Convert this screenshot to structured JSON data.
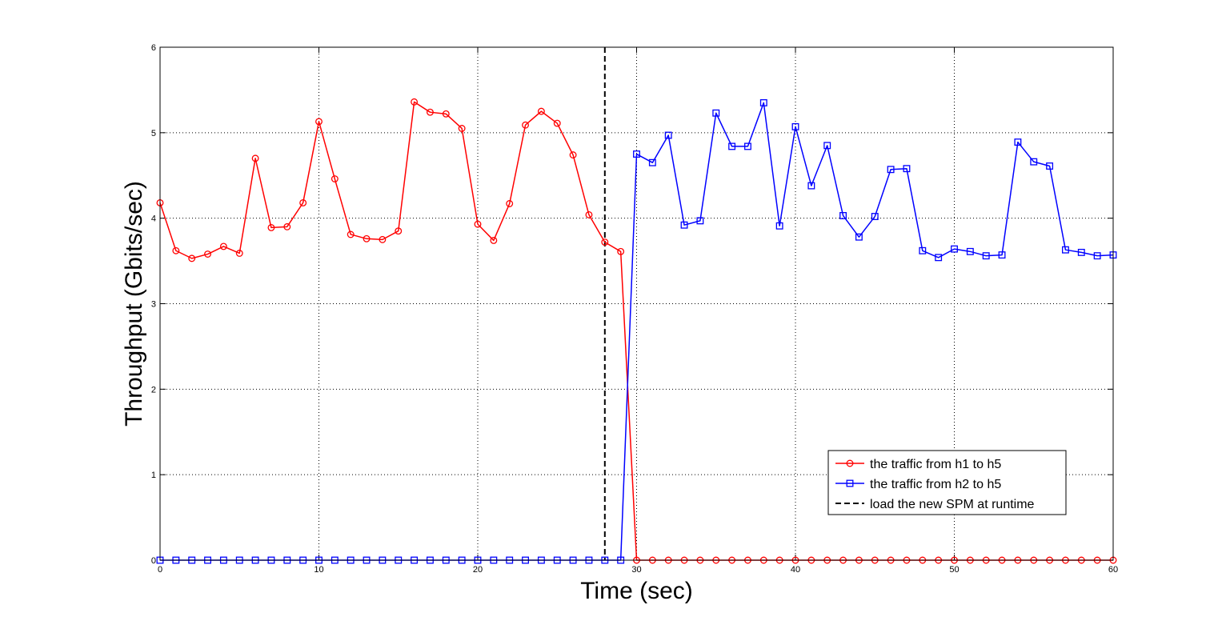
{
  "chart_data": {
    "type": "line",
    "title": "",
    "xlabel": "Time (sec)",
    "ylabel": "Throughput (Gbits/sec)",
    "xlim": [
      0,
      60
    ],
    "ylim": [
      0,
      6
    ],
    "xticks": [
      "0",
      "10",
      "20",
      "30",
      "40",
      "50",
      "60"
    ],
    "yticks": [
      "0",
      "1",
      "2",
      "3",
      "4",
      "5",
      "6"
    ],
    "grid": true,
    "legend_position": "lower-right",
    "x": [
      0,
      1,
      2,
      3,
      4,
      5,
      6,
      7,
      8,
      9,
      10,
      11,
      12,
      13,
      14,
      15,
      16,
      17,
      18,
      19,
      20,
      21,
      22,
      23,
      24,
      25,
      26,
      27,
      28,
      29,
      30,
      31,
      32,
      33,
      34,
      35,
      36,
      37,
      38,
      39,
      40,
      41,
      42,
      43,
      44,
      45,
      46,
      47,
      48,
      49,
      50,
      51,
      52,
      53,
      54,
      55,
      56,
      57,
      58,
      59,
      60
    ],
    "series": [
      {
        "name": "the traffic from h1 to h5",
        "color": "#ff0000",
        "marker": "circle",
        "values": [
          4.18,
          3.62,
          3.53,
          3.58,
          3.67,
          3.59,
          4.7,
          3.89,
          3.9,
          4.18,
          5.13,
          4.46,
          3.81,
          3.76,
          3.75,
          3.85,
          5.36,
          5.24,
          5.22,
          5.05,
          3.93,
          3.74,
          4.17,
          5.09,
          5.25,
          5.11,
          4.74,
          4.04,
          3.72,
          3.61,
          0,
          0,
          0,
          0,
          0,
          0,
          0,
          0,
          0,
          0,
          0,
          0,
          0,
          0,
          0,
          0,
          0,
          0,
          0,
          0,
          0,
          0,
          0,
          0,
          0,
          0,
          0,
          0,
          0,
          0,
          0
        ]
      },
      {
        "name": "the traffic from h2 to h5",
        "color": "#0000ff",
        "marker": "square",
        "values": [
          0,
          0,
          0,
          0,
          0,
          0,
          0,
          0,
          0,
          0,
          0,
          0,
          0,
          0,
          0,
          0,
          0,
          0,
          0,
          0,
          0,
          0,
          0,
          0,
          0,
          0,
          0,
          0,
          0,
          0,
          4.75,
          4.65,
          4.97,
          3.92,
          3.97,
          5.23,
          4.84,
          4.84,
          5.35,
          3.91,
          5.07,
          4.38,
          4.85,
          4.03,
          3.78,
          4.02,
          4.57,
          4.58,
          3.62,
          3.54,
          3.64,
          3.61,
          3.56,
          3.57,
          4.89,
          4.66,
          4.61,
          3.63,
          3.6,
          3.56,
          3.57
        ]
      }
    ],
    "vline": {
      "name": "load the new SPM at runtime",
      "x": 28,
      "color": "#000000",
      "style": "dashed"
    }
  }
}
